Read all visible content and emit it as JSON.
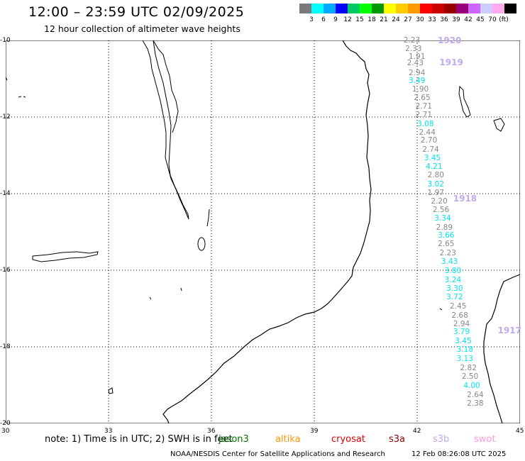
{
  "header": {
    "title": "12:00 – 23:59 UTC 02/09/2025",
    "subtitle": "12 hour collection of altimeter wave heights"
  },
  "legend": {
    "unit": "(ft)",
    "bins": [
      {
        "label": "",
        "color": "#7a7a7a"
      },
      {
        "label": "3",
        "color": "#00ffff"
      },
      {
        "label": "6",
        "color": "#00aaff"
      },
      {
        "label": "9",
        "color": "#0000ff"
      },
      {
        "label": "12",
        "color": "#00cc66"
      },
      {
        "label": "15",
        "color": "#00ff00"
      },
      {
        "label": "18",
        "color": "#009900"
      },
      {
        "label": "21",
        "color": "#ffff00"
      },
      {
        "label": "24",
        "color": "#ffcc00"
      },
      {
        "label": "27",
        "color": "#ff9900"
      },
      {
        "label": "30",
        "color": "#ff0000"
      },
      {
        "label": "33",
        "color": "#cc0000"
      },
      {
        "label": "36",
        "color": "#990000"
      },
      {
        "label": "39",
        "color": "#99007a"
      },
      {
        "label": "42",
        "color": "#cc66ff"
      },
      {
        "label": "45",
        "color": "#ccccff"
      },
      {
        "label": "70",
        "color": "#ffaaee"
      },
      {
        "label": "",
        "color": "#000000"
      }
    ]
  },
  "axes": {
    "lat_labels": [
      "-10",
      "-12",
      "-14",
      "-16",
      "-18",
      "-20"
    ],
    "lon_labels": [
      "30",
      "33",
      "36",
      "39",
      "42",
      "45"
    ]
  },
  "passes": [
    {
      "id": "1920",
      "lat": -10.02
    },
    {
      "id": "1919",
      "lat": -10.6
    },
    {
      "id": "1918",
      "lat": -14.15
    },
    {
      "id": "1917",
      "lat": -17.6
    }
  ],
  "observations": [
    {
      "lat": -10.0,
      "lon": 41.85,
      "swh": "2.23",
      "color": "#888888"
    },
    {
      "lat": -10.22,
      "lon": 41.9,
      "swh": "2.33",
      "color": "#888888"
    },
    {
      "lat": -10.42,
      "lon": 42.0,
      "swh": "1.91",
      "color": "#888888"
    },
    {
      "lat": -10.6,
      "lon": 41.95,
      "swh": "2.43",
      "color": "#888888"
    },
    {
      "lat": -10.85,
      "lon": 42.0,
      "swh": "2.94",
      "color": "#888888"
    },
    {
      "lat": -11.05,
      "lon": 42.0,
      "swh": "3.49",
      "color": "#00e5ee"
    },
    {
      "lat": -11.28,
      "lon": 42.1,
      "swh": "1.90",
      "color": "#888888"
    },
    {
      "lat": -11.5,
      "lon": 42.15,
      "swh": "2.65",
      "color": "#888888"
    },
    {
      "lat": -11.72,
      "lon": 42.2,
      "swh": "2.71",
      "color": "#888888"
    },
    {
      "lat": -11.95,
      "lon": 42.2,
      "swh": "2.71",
      "color": "#888888"
    },
    {
      "lat": -12.18,
      "lon": 42.25,
      "swh": "3.08",
      "color": "#00e5ee"
    },
    {
      "lat": -12.4,
      "lon": 42.3,
      "swh": "2.44",
      "color": "#888888"
    },
    {
      "lat": -12.62,
      "lon": 42.35,
      "swh": "2.70",
      "color": "#888888"
    },
    {
      "lat": -12.85,
      "lon": 42.4,
      "swh": "2.74",
      "color": "#888888"
    },
    {
      "lat": -13.08,
      "lon": 42.45,
      "swh": "3.45",
      "color": "#00e5ee"
    },
    {
      "lat": -13.3,
      "lon": 42.5,
      "swh": "4.21",
      "color": "#00e5ee"
    },
    {
      "lat": -13.52,
      "lon": 42.55,
      "swh": "2.80",
      "color": "#888888"
    },
    {
      "lat": -13.75,
      "lon": 42.55,
      "swh": "3.02",
      "color": "#00e5ee"
    },
    {
      "lat": -13.98,
      "lon": 42.55,
      "swh": "1.97",
      "color": "#888888"
    },
    {
      "lat": -14.2,
      "lon": 42.65,
      "swh": "2.20",
      "color": "#888888"
    },
    {
      "lat": -14.42,
      "lon": 42.7,
      "swh": "2.56",
      "color": "#888888"
    },
    {
      "lat": -14.65,
      "lon": 42.75,
      "swh": "3.34",
      "color": "#00e5ee"
    },
    {
      "lat": -14.88,
      "lon": 42.8,
      "swh": "2.89",
      "color": "#888888"
    },
    {
      "lat": -15.1,
      "lon": 42.85,
      "swh": "3.66",
      "color": "#00e5ee"
    },
    {
      "lat": -15.32,
      "lon": 42.85,
      "swh": "2.65",
      "color": "#888888"
    },
    {
      "lat": -15.55,
      "lon": 42.9,
      "swh": "2.23",
      "color": "#888888"
    },
    {
      "lat": -15.78,
      "lon": 42.95,
      "swh": "3.43",
      "color": "#00e5ee"
    },
    {
      "lat": -16.02,
      "lon": 43.05,
      "swh": "3.80",
      "color": "#00e5ee"
    },
    {
      "lat": -16.25,
      "lon": 43.05,
      "swh": "3.24",
      "color": "#00e5ee"
    },
    {
      "lat": -16.48,
      "lon": 43.1,
      "swh": "3.30",
      "color": "#00e5ee"
    },
    {
      "lat": -16.7,
      "lon": 43.1,
      "swh": "3.72",
      "color": "#00e5ee"
    },
    {
      "lat": -16.95,
      "lon": 43.2,
      "swh": "2.45",
      "color": "#888888"
    },
    {
      "lat": -17.18,
      "lon": 43.25,
      "swh": "2.68",
      "color": "#888888"
    },
    {
      "lat": -17.4,
      "lon": 43.3,
      "swh": "2.94",
      "color": "#888888"
    },
    {
      "lat": -17.62,
      "lon": 43.3,
      "swh": "3.79",
      "color": "#00e5ee"
    },
    {
      "lat": -17.85,
      "lon": 43.35,
      "swh": "3.45",
      "color": "#00e5ee"
    },
    {
      "lat": -18.08,
      "lon": 43.4,
      "swh": "3.18",
      "color": "#00e5ee"
    },
    {
      "lat": -18.32,
      "lon": 43.4,
      "swh": "3.13",
      "color": "#00e5ee"
    },
    {
      "lat": -18.55,
      "lon": 43.5,
      "swh": "2.82",
      "color": "#888888"
    },
    {
      "lat": -18.78,
      "lon": 43.55,
      "swh": "2.50",
      "color": "#888888"
    },
    {
      "lat": -19.02,
      "lon": 43.6,
      "swh": "4.00",
      "color": "#00e5ee"
    },
    {
      "lat": -19.25,
      "lon": 43.7,
      "swh": "2.64",
      "color": "#888888"
    },
    {
      "lat": -19.48,
      "lon": 43.7,
      "swh": "2.38",
      "color": "#888888"
    }
  ],
  "footer": {
    "note": "note:  1) Time is in UTC; 2) SWH is in feet",
    "satellites": [
      {
        "name": "jason3",
        "color": "#007700"
      },
      {
        "name": "altika",
        "color": "#ff9900"
      },
      {
        "name": "cryosat",
        "color": "#dd0000"
      },
      {
        "name": "s3a",
        "color": "#990000"
      },
      {
        "name": "s3b",
        "color": "#c0aaee"
      },
      {
        "name": "swot",
        "color": "#ff99dd"
      }
    ],
    "credit": "NOAA/NESDIS Center for Satellite Applications and Research",
    "timestamp": "12 Feb 08:26:08 UTC 2025"
  }
}
